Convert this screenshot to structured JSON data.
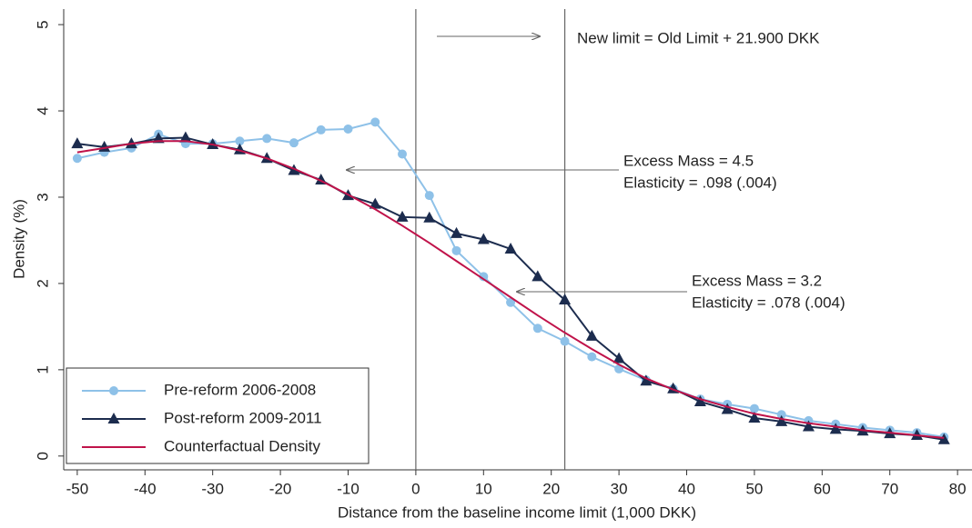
{
  "chart_data": {
    "type": "line",
    "x_label": "Distance from the baseline income limit (1,000 DKK)",
    "y_label": "Density (%)",
    "x": [
      -50,
      -46,
      -42,
      -38,
      -34,
      -30,
      -26,
      -22,
      -18,
      -14,
      -10,
      -6,
      -2,
      2,
      6,
      10,
      14,
      18,
      22,
      26,
      30,
      34,
      38,
      42,
      46,
      50,
      54,
      58,
      62,
      66,
      70,
      74,
      78
    ],
    "series": [
      {
        "name": "Pre-reform 2006-2008",
        "color": "#8ec1e8",
        "marker": "circle",
        "values": [
          3.45,
          3.52,
          3.57,
          3.73,
          3.62,
          3.62,
          3.65,
          3.68,
          3.63,
          3.78,
          3.79,
          3.87,
          3.5,
          3.02,
          2.38,
          2.08,
          1.78,
          1.48,
          1.33,
          1.15,
          1.01,
          0.88,
          0.78,
          0.66,
          0.6,
          0.55,
          0.48,
          0.41,
          0.37,
          0.33,
          0.3,
          0.27,
          0.22
        ]
      },
      {
        "name": "Post-reform 2009-2011",
        "color": "#1c2c4e",
        "marker": "triangle",
        "values": [
          3.62,
          3.58,
          3.62,
          3.68,
          3.69,
          3.61,
          3.55,
          3.45,
          3.31,
          3.2,
          3.02,
          2.92,
          2.77,
          2.76,
          2.58,
          2.51,
          2.4,
          2.08,
          1.81,
          1.39,
          1.13,
          0.87,
          0.78,
          0.63,
          0.54,
          0.44,
          0.4,
          0.34,
          0.31,
          0.29,
          0.26,
          0.24,
          0.19
        ]
      },
      {
        "name": "Counterfactual Density",
        "color": "#c0134a",
        "values": [
          3.52,
          3.57,
          3.62,
          3.65,
          3.65,
          3.61,
          3.54,
          3.45,
          3.33,
          3.19,
          3.03,
          2.86,
          2.67,
          2.47,
          2.26,
          2.05,
          1.84,
          1.63,
          1.43,
          1.24,
          1.06,
          0.9,
          0.77,
          0.66,
          0.57,
          0.49,
          0.43,
          0.38,
          0.34,
          0.3,
          0.27,
          0.24,
          0.21
        ]
      }
    ],
    "xlim": [
      -52,
      82
    ],
    "xticks": [
      -50,
      -40,
      -30,
      -20,
      -10,
      0,
      10,
      20,
      30,
      40,
      50,
      60,
      70,
      80
    ],
    "ylim": [
      -0.16,
      5.18
    ],
    "yticks": [
      0,
      1,
      2,
      3,
      4,
      5
    ],
    "vlines": [
      0,
      22
    ],
    "annotations": [
      "New limit = Old Limit + 21.900 DKK",
      "Excess Mass = 4.5",
      "Elasticity = .098 (.004)",
      "Excess Mass = 3.2",
      "Elasticity = .078 (.004)"
    ],
    "legend": "lower left"
  }
}
